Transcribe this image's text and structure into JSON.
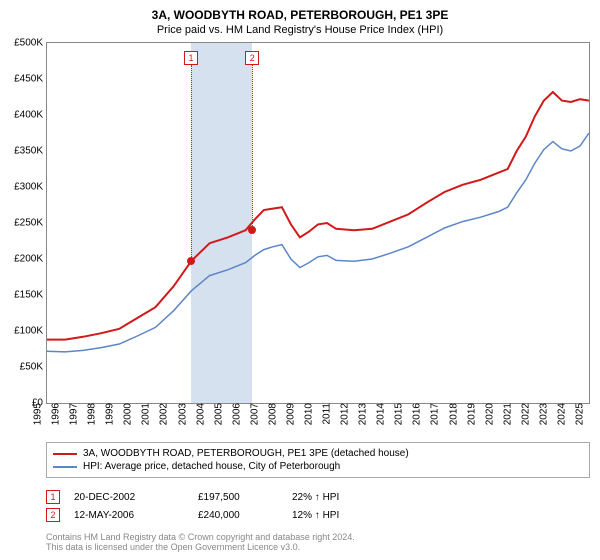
{
  "title": "3A, WOODBYTH ROAD, PETERBOROUGH, PE1 3PE",
  "subtitle": "Price paid vs. HM Land Registry's House Price Index (HPI)",
  "chart": {
    "type": "line",
    "background_color": "#ffffff",
    "grid_color": "#dddddd",
    "axis_color": "#888888",
    "xlim": [
      1995,
      2025
    ],
    "ylim": [
      0,
      500000
    ],
    "ytick_step": 50000,
    "yticks": [
      "£0",
      "£50K",
      "£100K",
      "£150K",
      "£200K",
      "£250K",
      "£300K",
      "£350K",
      "£400K",
      "£450K",
      "£500K"
    ],
    "xticks": [
      "1995",
      "1996",
      "1997",
      "1998",
      "1999",
      "2000",
      "2001",
      "2002",
      "2003",
      "2004",
      "2005",
      "2006",
      "2007",
      "2008",
      "2009",
      "2010",
      "2011",
      "2012",
      "2013",
      "2014",
      "2015",
      "2016",
      "2017",
      "2018",
      "2019",
      "2020",
      "2021",
      "2022",
      "2023",
      "2024",
      "2025"
    ],
    "shade_band": {
      "start": 2002.97,
      "end": 2006.36,
      "color": "#d6e1ef"
    },
    "series": [
      {
        "name": "property",
        "label": "3A, WOODBYTH ROAD, PETERBOROUGH, PE1 3PE (detached house)",
        "color": "#d11919",
        "line_width": 2,
        "data": [
          [
            1995,
            88000
          ],
          [
            1996,
            88000
          ],
          [
            1997,
            92000
          ],
          [
            1998,
            97000
          ],
          [
            1999,
            103000
          ],
          [
            2000,
            118000
          ],
          [
            2001,
            133000
          ],
          [
            2002,
            162000
          ],
          [
            2003,
            197500
          ],
          [
            2004,
            222000
          ],
          [
            2005,
            230000
          ],
          [
            2006,
            240000
          ],
          [
            2006.5,
            255000
          ],
          [
            2007,
            268000
          ],
          [
            2007.5,
            270000
          ],
          [
            2008,
            272000
          ],
          [
            2008.5,
            248000
          ],
          [
            2009,
            230000
          ],
          [
            2009.5,
            238000
          ],
          [
            2010,
            248000
          ],
          [
            2010.5,
            250000
          ],
          [
            2011,
            242000
          ],
          [
            2012,
            240000
          ],
          [
            2013,
            242000
          ],
          [
            2014,
            252000
          ],
          [
            2015,
            262000
          ],
          [
            2016,
            278000
          ],
          [
            2017,
            293000
          ],
          [
            2018,
            303000
          ],
          [
            2019,
            310000
          ],
          [
            2020,
            320000
          ],
          [
            2020.5,
            325000
          ],
          [
            2021,
            350000
          ],
          [
            2021.5,
            370000
          ],
          [
            2022,
            398000
          ],
          [
            2022.5,
            420000
          ],
          [
            2023,
            432000
          ],
          [
            2023.5,
            420000
          ],
          [
            2024,
            418000
          ],
          [
            2024.5,
            422000
          ],
          [
            2025,
            420000
          ]
        ]
      },
      {
        "name": "hpi",
        "label": "HPI: Average price, detached house, City of Peterborough",
        "color": "#5b87c7",
        "line_width": 1.5,
        "data": [
          [
            1995,
            72000
          ],
          [
            1996,
            71000
          ],
          [
            1997,
            73000
          ],
          [
            1998,
            77000
          ],
          [
            1999,
            82000
          ],
          [
            2000,
            93000
          ],
          [
            2001,
            105000
          ],
          [
            2002,
            128000
          ],
          [
            2003,
            156000
          ],
          [
            2004,
            177000
          ],
          [
            2005,
            185000
          ],
          [
            2006,
            195000
          ],
          [
            2006.5,
            205000
          ],
          [
            2007,
            213000
          ],
          [
            2007.5,
            217000
          ],
          [
            2008,
            220000
          ],
          [
            2008.5,
            200000
          ],
          [
            2009,
            188000
          ],
          [
            2009.5,
            195000
          ],
          [
            2010,
            203000
          ],
          [
            2010.5,
            205000
          ],
          [
            2011,
            198000
          ],
          [
            2012,
            197000
          ],
          [
            2013,
            200000
          ],
          [
            2014,
            208000
          ],
          [
            2015,
            217000
          ],
          [
            2016,
            230000
          ],
          [
            2017,
            243000
          ],
          [
            2018,
            252000
          ],
          [
            2019,
            258000
          ],
          [
            2020,
            266000
          ],
          [
            2020.5,
            272000
          ],
          [
            2021,
            292000
          ],
          [
            2021.5,
            310000
          ],
          [
            2022,
            333000
          ],
          [
            2022.5,
            352000
          ],
          [
            2023,
            363000
          ],
          [
            2023.5,
            353000
          ],
          [
            2024,
            350000
          ],
          [
            2024.5,
            357000
          ],
          [
            2025,
            375000
          ]
        ]
      }
    ],
    "markers": [
      {
        "x": 2002.97,
        "y": 197500,
        "color": "#d11919",
        "flag": "1",
        "flag_color": "#d11919"
      },
      {
        "x": 2006.36,
        "y": 240000,
        "color": "#d11919",
        "flag": "2",
        "flag_color": "#d11919"
      }
    ]
  },
  "legend": [
    {
      "label": "3A, WOODBYTH ROAD, PETERBOROUGH, PE1 3PE (detached house)",
      "color": "#d11919"
    },
    {
      "label": "HPI: Average price, detached house, City of Peterborough",
      "color": "#5b87c7"
    }
  ],
  "sales": [
    {
      "flag": "1",
      "flag_color": "#d11919",
      "date": "20-DEC-2002",
      "price": "£197,500",
      "hpi": "22% ↑ HPI"
    },
    {
      "flag": "2",
      "flag_color": "#d11919",
      "date": "12-MAY-2006",
      "price": "£240,000",
      "hpi": "12% ↑ HPI"
    }
  ],
  "footnote_line1": "Contains HM Land Registry data © Crown copyright and database right 2024.",
  "footnote_line2": "This data is licensed under the Open Government Licence v3.0."
}
